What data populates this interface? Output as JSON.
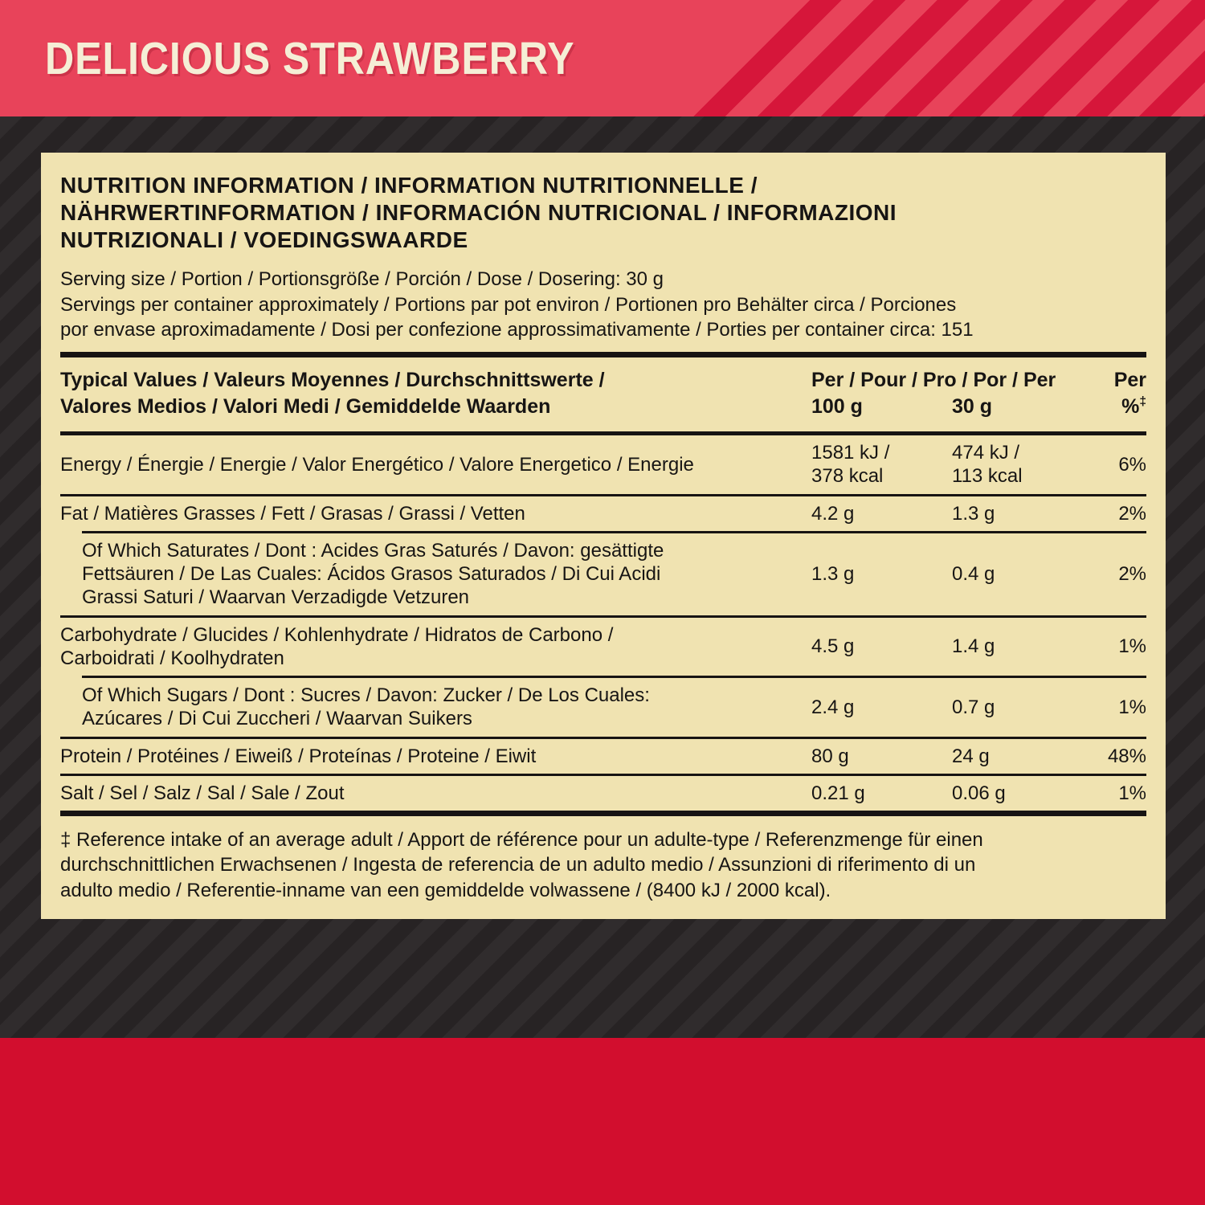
{
  "banner": {
    "title": "DELICIOUS STRAWBERRY"
  },
  "colors": {
    "banner_red": "#e8435a",
    "banner_stripe_red": "#d6163a",
    "footer_red": "#d20e2e",
    "background_dark": "#272324",
    "background_stripe": "#302c2d",
    "panel_cream": "#f0e3b1",
    "ink": "#171413"
  },
  "panel": {
    "heading_lines": [
      "NUTRITION INFORMATION / INFORMATION NUTRITIONNELLE /",
      "NÄHRWERTINFORMATION / INFORMACIÓN NUTRICIONAL / INFORMAZIONI",
      "NUTRIZIONALI / VOEDINGSWAARDE"
    ],
    "serving_size": "Serving size / Portion / Portionsgröße / Porción / Dose / Dosering: 30 g",
    "servings_per_container": "Servings per container approximately / Portions par pot environ / Portionen pro Behälter circa / Porciones\npor envase aproximadamente / Dosi per confezione approssimativamente / Porties per container circa: 151",
    "table": {
      "header_label": "Typical Values / Valeurs Moyennes / Durchschnittswerte /\nValores Medios / Valori Medi / Gemiddelde Waarden",
      "header_per": "Per / Pour / Pro / Por / Per",
      "header_per_last": "Per",
      "col_100g": "100 g",
      "col_30g": "30 g",
      "col_pct": "%",
      "col_pct_mark": "‡",
      "rows": [
        {
          "label": "Energy / Énergie / Energie / Valor Energético / Valore Energetico / Energie",
          "per100": "1581 kJ /\n378 kcal",
          "per30": "474 kJ /\n113 kcal",
          "pct": "6%"
        },
        {
          "label": "Fat / Matières Grasses / Fett / Grasas / Grassi / Vetten",
          "per100": "4.2 g",
          "per30": "1.3 g",
          "pct": "2%"
        },
        {
          "label": "Of Which Saturates / Dont : Acides Gras Saturés / Davon: gesättigte\nFettsäuren / De Las Cuales: Ácidos Grasos Saturados / Di Cui Acidi\nGrassi Saturi / Waarvan Verzadigde Vetzuren",
          "per100": "1.3 g",
          "per30": "0.4 g",
          "pct": "2%"
        },
        {
          "label": "Carbohydrate / Glucides / Kohlenhydrate / Hidratos de Carbono /\nCarboidrati / Koolhydraten",
          "per100": "4.5 g",
          "per30": "1.4 g",
          "pct": "1%"
        },
        {
          "label": "Of Which Sugars / Dont : Sucres / Davon: Zucker / De Los Cuales:\nAzúcares / Di Cui Zuccheri / Waarvan Suikers",
          "per100": "2.4 g",
          "per30": "0.7 g",
          "pct": "1%"
        },
        {
          "label": "Protein / Protéines / Eiweiß / Proteínas / Proteine / Eiwit",
          "per100": "80 g",
          "per30": "24 g",
          "pct": "48%"
        },
        {
          "label": "Salt / Sel / Salz / Sal / Sale / Zout",
          "per100": "0.21 g",
          "per30": "0.06 g",
          "pct": "1%"
        }
      ]
    },
    "footnote": "‡ Reference intake of an average adult / Apport de référence pour un adulte-type / Referenzmenge für einen\ndurchschnittlichen Erwachsenen / Ingesta de referencia de un adulto medio / Assunzioni di riferimento di un\nadulto medio / Referentie-inname van een gemiddelde volwassene / (8400 kJ / 2000 kcal)."
  }
}
